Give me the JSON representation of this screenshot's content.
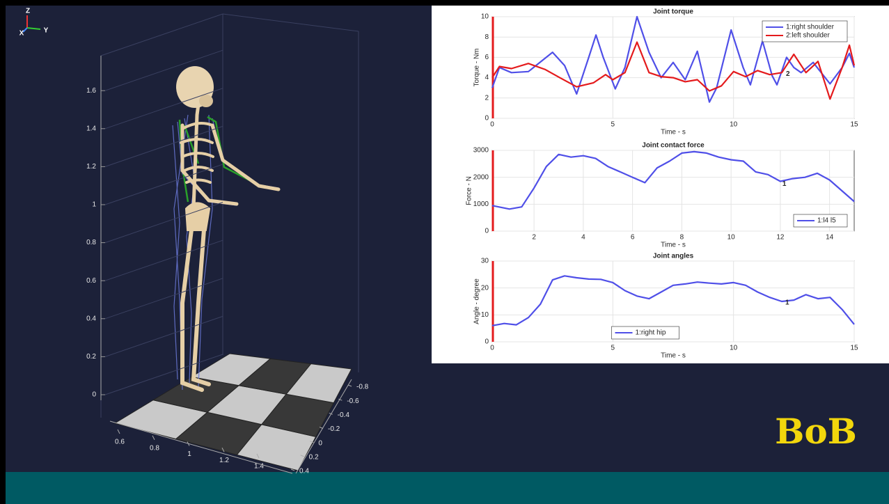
{
  "chart_data": [
    {
      "type": "line",
      "title": "Joint torque",
      "xlabel": "Time - s",
      "ylabel": "Torque - Nm",
      "xlim": [
        0,
        15
      ],
      "ylim": [
        0,
        10
      ],
      "xticks": [
        0,
        5,
        10,
        15
      ],
      "yticks": [
        0,
        2,
        4,
        6,
        8,
        10
      ],
      "grid": true,
      "legend": "upper right",
      "annotations": [
        "2"
      ],
      "series": [
        {
          "name": "1:right shoulder",
          "color": "#4f4fe8",
          "x": [
            0,
            0.3,
            0.8,
            1.5,
            2.5,
            3,
            3.5,
            4,
            4.3,
            4.6,
            5.1,
            5.5,
            6,
            6.5,
            7,
            7.5,
            8,
            8.5,
            9,
            9.3,
            9.9,
            10.4,
            10.7,
            11.2,
            11.6,
            11.8,
            12.2,
            12.5,
            12.8,
            13.3,
            14,
            14.5,
            14.8,
            15
          ],
          "values": [
            3,
            5,
            4.5,
            4.6,
            6.5,
            5.2,
            2.4,
            6,
            8.2,
            6,
            2.9,
            5,
            10,
            6.5,
            4,
            5.5,
            3.8,
            6.6,
            1.6,
            3,
            8.7,
            5,
            3.3,
            7.6,
            4.2,
            3.3,
            6,
            5,
            4.5,
            5.5,
            3.4,
            5,
            6.4,
            5
          ]
        },
        {
          "name": "2:left shoulder",
          "color": "#e41a1c",
          "x": [
            0,
            0.3,
            0.8,
            1.5,
            2.2,
            2.8,
            3.5,
            4.2,
            4.7,
            5,
            5.5,
            6,
            6.5,
            7,
            7.5,
            8,
            8.5,
            9,
            9.5,
            10,
            10.5,
            11,
            11.5,
            12,
            12.5,
            13,
            13.5,
            14,
            14.5,
            14.8,
            15
          ],
          "values": [
            4,
            5.1,
            4.9,
            5.4,
            4.8,
            4,
            3.1,
            3.5,
            4.3,
            3.8,
            4.5,
            7.5,
            4.5,
            4.1,
            4,
            3.6,
            3.8,
            2.7,
            3.2,
            4.6,
            4.1,
            4.7,
            4.3,
            4.5,
            6.3,
            4.5,
            5.6,
            1.9,
            5,
            7.2,
            5.2
          ]
        }
      ]
    },
    {
      "type": "line",
      "title": "Joint contact force",
      "xlabel": "Time - s",
      "ylabel": "Force - N",
      "xlim": [
        0.3,
        15
      ],
      "ylim": [
        0,
        3000
      ],
      "xticks": [
        2,
        4,
        6,
        8,
        10,
        12,
        14
      ],
      "yticks": [
        0,
        1000,
        2000,
        3000
      ],
      "grid": true,
      "legend": "lower right",
      "annotations": [
        "1"
      ],
      "series": [
        {
          "name": "1:l4 l5",
          "color": "#4f4fe8",
          "x": [
            0.3,
            1,
            1.5,
            2,
            2.5,
            3,
            3.5,
            4,
            4.5,
            5,
            5.5,
            6,
            6.5,
            7,
            7.5,
            8,
            8.5,
            9,
            9.5,
            10,
            10.5,
            11,
            11.5,
            12,
            12.5,
            13,
            13.5,
            14,
            14.5,
            15
          ],
          "values": [
            950,
            820,
            900,
            1600,
            2400,
            2850,
            2750,
            2800,
            2700,
            2400,
            2200,
            2000,
            1800,
            2350,
            2600,
            2900,
            2950,
            2900,
            2750,
            2650,
            2600,
            2200,
            2100,
            1850,
            1950,
            2000,
            2150,
            1900,
            1500,
            1100
          ]
        }
      ]
    },
    {
      "type": "line",
      "title": "Joint angles",
      "xlabel": "Time - s",
      "ylabel": "Angle - degree",
      "xlim": [
        0,
        15
      ],
      "ylim": [
        0,
        30
      ],
      "xticks": [
        0,
        5,
        10,
        15
      ],
      "yticks": [
        0,
        10,
        20,
        30
      ],
      "grid": true,
      "legend": "lower center",
      "annotations": [
        "1"
      ],
      "series": [
        {
          "name": "1:right hip",
          "color": "#4f4fe8",
          "x": [
            0,
            0.5,
            1,
            1.5,
            2,
            2.5,
            3,
            3.5,
            4,
            4.5,
            5,
            5.5,
            6,
            6.5,
            7,
            7.5,
            8,
            8.5,
            9,
            9.5,
            10,
            10.5,
            11,
            11.5,
            12,
            12.5,
            13,
            13.5,
            14,
            14.5,
            15
          ],
          "values": [
            6,
            6.8,
            6.3,
            9,
            14,
            23,
            24.5,
            23.8,
            23.3,
            23.2,
            22,
            19,
            17,
            16,
            18.5,
            21,
            21.5,
            22.2,
            21.8,
            21.5,
            22,
            21,
            18.5,
            16.5,
            15,
            15.5,
            17.5,
            16,
            16.5,
            12,
            6.5
          ]
        }
      ]
    }
  ],
  "scene": {
    "triad": [
      "Z",
      "Y",
      "X"
    ],
    "zticks": [
      0,
      0.2,
      0.4,
      0.6,
      0.8,
      1,
      1.2,
      1.4,
      1.6
    ],
    "xticks": [
      0.6,
      0.8,
      1,
      1.2,
      1.4
    ],
    "yticks": [
      -0.8,
      -0.6,
      -0.4,
      -0.2,
      0,
      0.2,
      0.4
    ]
  },
  "logo": "BoB"
}
